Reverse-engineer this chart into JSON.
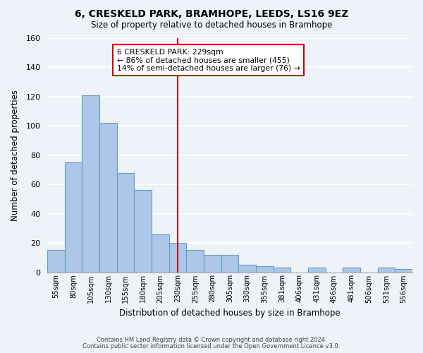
{
  "title": "6, CRESKELD PARK, BRAMHOPE, LEEDS, LS16 9EZ",
  "subtitle": "Size of property relative to detached houses in Bramhope",
  "xlabel": "Distribution of detached houses by size in Bramhope",
  "ylabel": "Number of detached properties",
  "bar_color": "#aec6e8",
  "bar_edge_color": "#5a9fd4",
  "background_color": "#eef2f9",
  "bins": [
    "55sqm",
    "80sqm",
    "105sqm",
    "130sqm",
    "155sqm",
    "180sqm",
    "205sqm",
    "230sqm",
    "255sqm",
    "280sqm",
    "305sqm",
    "330sqm",
    "355sqm",
    "381sqm",
    "406sqm",
    "431sqm",
    "456sqm",
    "481sqm",
    "506sqm",
    "531sqm",
    "556sqm"
  ],
  "values": [
    15,
    75,
    121,
    102,
    68,
    56,
    26,
    20,
    15,
    12,
    12,
    5,
    4,
    3,
    0,
    3,
    0,
    3,
    0,
    3,
    2
  ],
  "ylim": [
    0,
    160
  ],
  "yticks": [
    0,
    20,
    40,
    60,
    80,
    100,
    120,
    140,
    160
  ],
  "vline_index": 7,
  "vline_color": "#cc0000",
  "annotation_title": "6 CRESKELD PARK: 229sqm",
  "annotation_line1": "← 86% of detached houses are smaller (455)",
  "annotation_line2": "14% of semi-detached houses are larger (76) →",
  "annotation_box_color": "#ffffff",
  "annotation_box_edge": "#cc0000",
  "footer1": "Contains HM Land Registry data © Crown copyright and database right 2024.",
  "footer2": "Contains public sector information licensed under the Open Government Licence v3.0."
}
